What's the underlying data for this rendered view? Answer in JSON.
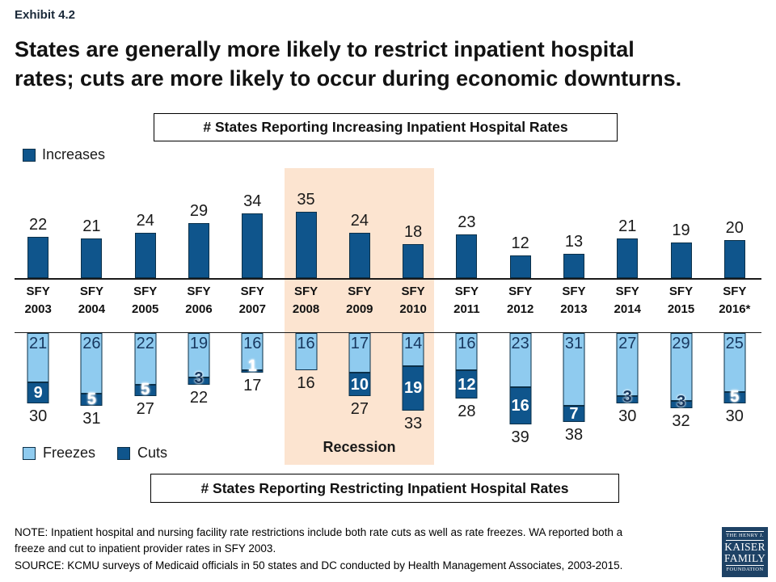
{
  "exhibit_label": "Exhibit 4.2",
  "title_lines": [
    "States are generally more likely to restrict inpatient hospital",
    "rates; cuts are more likely to occur during economic downturns."
  ],
  "top_panel_heading": "# States Reporting Increasing Inpatient Hospital Rates",
  "bottom_panel_heading": "# States Reporting Restricting Inpatient Hospital Rates",
  "legend_increases": "Increases",
  "legend_freezes": "Freezes",
  "legend_cuts": "Cuts",
  "recession_label": "Recession",
  "note_lines": [
    "NOTE: Inpatient hospital and nursing facility rate restrictions include both rate cuts as well as rate freezes. WA reported both a",
    "freeze and cut to inpatient provider rates in SFY 2003.",
    "SOURCE: KCMU surveys of Medicaid officials in 50 states and DC conducted by Health Management Associates, 2003-2015."
  ],
  "logo": {
    "top": "THE HENRY J.",
    "name1": "KAISER",
    "name2": "FAMILY",
    "bottom": "FOUNDATION"
  },
  "colors": {
    "dark_blue": "#0F558C",
    "light_blue": "#8FCBEF",
    "recession_band": "#FCE4D0",
    "cut_label_navy": "#17375E",
    "logo_bg": "#1E4265"
  },
  "chart_data": {
    "type": "bar",
    "categories": [
      "SFY 2003",
      "SFY 2004",
      "SFY 2005",
      "SFY 2006",
      "SFY 2007",
      "SFY 2008",
      "SFY 2009",
      "SFY 2010",
      "SFY 2011",
      "SFY 2012",
      "SFY 2013",
      "SFY 2014",
      "SFY 2015",
      "SFY 2016*"
    ],
    "series": [
      {
        "name": "Increases",
        "panel": "top",
        "values": [
          22,
          21,
          24,
          29,
          34,
          35,
          24,
          18,
          23,
          12,
          13,
          21,
          19,
          20
        ]
      },
      {
        "name": "Freezes",
        "panel": "bottom-stacked",
        "values": [
          21,
          26,
          22,
          19,
          16,
          16,
          17,
          14,
          16,
          23,
          31,
          27,
          29,
          25
        ]
      },
      {
        "name": "Cuts",
        "panel": "bottom-stacked",
        "values": [
          9,
          5,
          5,
          3,
          1,
          0,
          10,
          19,
          12,
          16,
          7,
          3,
          3,
          5
        ]
      }
    ],
    "restricting_totals": [
      30,
      31,
      27,
      22,
      17,
      16,
      27,
      33,
      28,
      39,
      38,
      30,
      32,
      30
    ],
    "cut_label_colors": [
      "#FFFFFF",
      "#FFFFFF",
      "#FFFFFF",
      "#17375E",
      "#FFFFFF",
      "",
      "#FFFFFF",
      "#FFFFFF",
      "#FFFFFF",
      "#FFFFFF",
      "#FFFFFF",
      "#17375E",
      "#17375E",
      "#FFFFFF"
    ],
    "recession_categories": [
      "SFY 2008",
      "SFY 2009",
      "SFY 2010"
    ],
    "title_top": "# States Reporting Increasing Inpatient Hospital Rates",
    "title_bottom": "# States Reporting Restricting Inpatient Hospital Rates",
    "legend_position": "increases top-left; freezes/cuts bottom-left",
    "grid": false
  }
}
